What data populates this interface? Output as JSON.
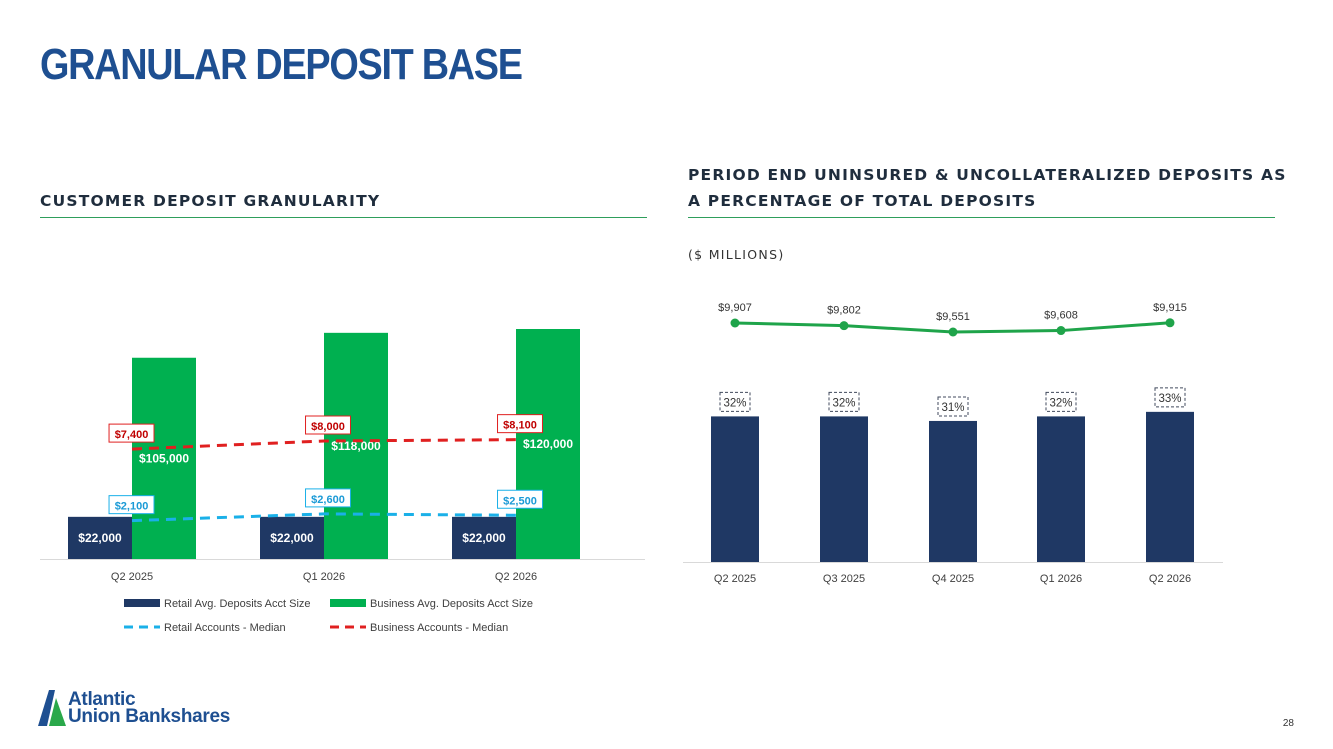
{
  "page": {
    "title": "GRANULAR DEPOSIT BASE",
    "page_number": "28",
    "logo_line1": "Atlantic",
    "logo_line2": "Union Bankshares"
  },
  "colors": {
    "navy": "#1f3864",
    "green": "#00b050",
    "red_dash": "#e02020",
    "blue_dash": "#1ab0e8",
    "brand_blue": "#1e4f91",
    "line_green": "#1fa44a",
    "rule_green": "#2e9e5b"
  },
  "chart_data": [
    {
      "type": "bar",
      "title": "CUSTOMER DEPOSIT GRANULARITY",
      "categories": [
        "Q2 2025",
        "Q1 2026",
        "Q2 2026"
      ],
      "series": [
        {
          "name": "Retail Avg. Deposits Acct Size",
          "kind": "bar",
          "color": "#1f3864",
          "values": [
            22000,
            22000,
            22000
          ],
          "labels": [
            "$22,000",
            "$22,000",
            "$22,000"
          ]
        },
        {
          "name": "Business Avg. Deposits Acct Size",
          "kind": "bar",
          "color": "#00b050",
          "values": [
            105000,
            118000,
            120000
          ],
          "labels": [
            "$105,000",
            "$118,000",
            "$120,000"
          ]
        },
        {
          "name": "Retail Accounts - Median",
          "kind": "dashed-line",
          "color": "#1ab0e8",
          "values": [
            2100,
            2600,
            2500
          ],
          "labels": [
            "$2,100",
            "$2,600",
            "$2,500"
          ]
        },
        {
          "name": "Business Accounts - Median",
          "kind": "dashed-line",
          "color": "#e02020",
          "values": [
            7400,
            8000,
            8100
          ],
          "labels": [
            "$7,400",
            "$8,000",
            "$8,100"
          ]
        }
      ],
      "legend": "bottom",
      "grid": false
    },
    {
      "type": "bar",
      "title": "PERIOD END UNINSURED & UNCOLLATERALIZED DEPOSITS AS A PERCENTAGE OF TOTAL DEPOSITS",
      "subtitle": "($ MILLIONS)",
      "categories": [
        "Q2 2025",
        "Q3 2025",
        "Q4 2025",
        "Q1 2026",
        "Q2 2026"
      ],
      "series": [
        {
          "kind": "bar",
          "color": "#1f3864",
          "values": [
            32,
            32,
            31,
            32,
            33
          ],
          "labels": [
            "32%",
            "32%",
            "31%",
            "32%",
            "33%"
          ]
        },
        {
          "kind": "line",
          "color": "#1fa44a",
          "values": [
            9907,
            9802,
            9551,
            9608,
            9915
          ],
          "labels": [
            "$9,907",
            "$9,802",
            "$9,551",
            "$9,608",
            "$9,915"
          ]
        }
      ],
      "legend": "none",
      "grid": false
    }
  ]
}
